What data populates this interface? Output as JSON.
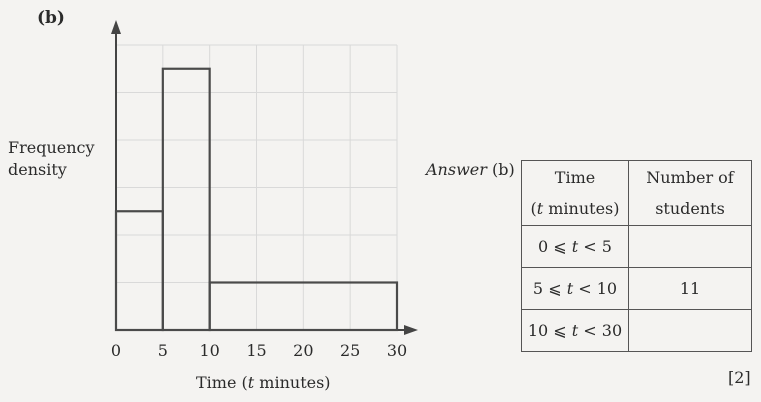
{
  "part_label": "(b)",
  "histogram": {
    "y_axis_label_line1": "Frequency",
    "y_axis_label_line2": "density",
    "x_axis_label_prefix": "Time (",
    "x_axis_label_var": "t",
    "x_axis_label_suffix": " minutes)"
  },
  "chart_data": {
    "type": "bar",
    "xlabel": "Time (t minutes)",
    "ylabel": "Frequency density",
    "x_ticks": [
      0,
      5,
      10,
      15,
      20,
      25,
      30
    ],
    "xlim": [
      0,
      30
    ],
    "y_grid_lines": 6,
    "y_gridlines_per_bar_height": {
      "0-5": 2.5,
      "5-10": 5.5,
      "10-30": 1
    },
    "bins": [
      {
        "start": 0,
        "end": 5,
        "height_grid_units": 2.5
      },
      {
        "start": 5,
        "end": 10,
        "height_grid_units": 5.5
      },
      {
        "start": 10,
        "end": 30,
        "height_grid_units": 1
      }
    ],
    "grid": true
  },
  "answer": {
    "label_prefix": "Answer",
    "label_part": "(b)",
    "header_col1_line1": "Time",
    "header_col1_line2_var": "t",
    "header_col1_line2_rest": " minutes)",
    "header_col1_line2_open": "(",
    "header_col2_line1": "Number of",
    "header_col2_line2": "students",
    "rows": [
      {
        "interval": "0 ⩽ t < 5",
        "lower": "0",
        "var": "t",
        "upper": "5",
        "students": ""
      },
      {
        "interval": "5 ⩽ t < 10",
        "lower": "5",
        "var": "t",
        "upper": "10",
        "students": "11"
      },
      {
        "interval": "10 ⩽ t < 30",
        "lower": "10",
        "var": "t",
        "upper": "30",
        "students": ""
      }
    ]
  },
  "marks": "[2]"
}
